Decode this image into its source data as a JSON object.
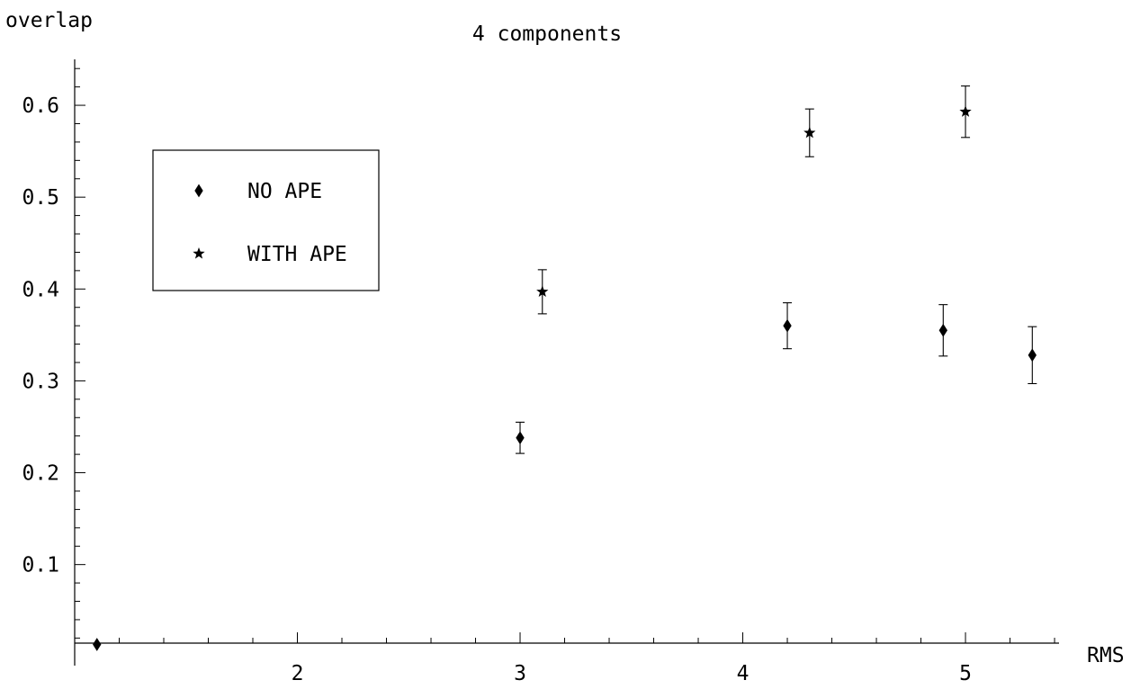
{
  "chart_data": {
    "type": "scatter",
    "title": "4 components",
    "xlabel": "RMS",
    "ylabel": "overlap",
    "xlim": [
      1.0,
      5.42
    ],
    "ylim": [
      -0.01,
      0.65
    ],
    "x_ticks_major": [
      2,
      3,
      4,
      5
    ],
    "x_tick_labels": [
      "2",
      "3",
      "4",
      "5"
    ],
    "y_ticks_major": [
      0.1,
      0.2,
      0.3,
      0.4,
      0.5,
      0.6
    ],
    "y_tick_labels": [
      "0.1",
      "0.2",
      "0.3",
      "0.4",
      "0.5",
      "0.6"
    ],
    "grid": false,
    "legend_position": "upper-left",
    "series": [
      {
        "name": "NO APE",
        "marker": "diamond",
        "points": [
          {
            "x": 1.1,
            "y": 0.013,
            "err": 0
          },
          {
            "x": 3.0,
            "y": 0.238,
            "err": 0.017
          },
          {
            "x": 4.2,
            "y": 0.36,
            "err": 0.025
          },
          {
            "x": 4.9,
            "y": 0.355,
            "err": 0.028
          },
          {
            "x": 5.3,
            "y": 0.328,
            "err": 0.031
          }
        ]
      },
      {
        "name": "WITH APE",
        "marker": "star",
        "points": [
          {
            "x": 3.1,
            "y": 0.397,
            "err": 0.024
          },
          {
            "x": 4.3,
            "y": 0.57,
            "err": 0.026
          },
          {
            "x": 5.0,
            "y": 0.593,
            "err": 0.028
          }
        ]
      }
    ]
  }
}
